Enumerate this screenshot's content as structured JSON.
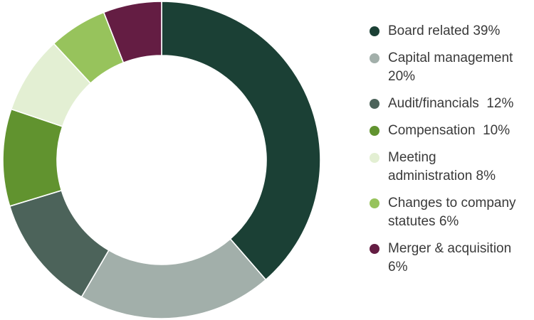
{
  "page": {
    "background": "#ffffff",
    "text_color": "#3a3a3a"
  },
  "chart_data": {
    "type": "pie",
    "subtype": "donut",
    "title": "",
    "legend_position": "right",
    "start_angle_deg": 0,
    "direction": "clockwise",
    "inner_radius_ratio": 0.66,
    "separator_color": "#ffffff",
    "categories": [
      "Board related",
      "Capital management",
      "Audit/financials",
      "Compensation",
      "Meeting administration",
      "Changes to company statutes",
      "Merger & acquisition"
    ],
    "values": [
      39,
      20,
      12,
      10,
      8,
      6,
      6
    ],
    "unit": "%",
    "colors": [
      "#1b4035",
      "#a2afaa",
      "#4c635a",
      "#61932f",
      "#e3efd3",
      "#97c35c",
      "#641d43"
    ],
    "legend_labels": [
      "Board related 39%",
      "Capital management\n20%",
      "Audit/financials  12%",
      "Compensation  10%",
      "Meeting\nadministration 8%",
      "Changes to company\nstatutes 6%",
      "Merger & acquisition\n6%"
    ]
  }
}
